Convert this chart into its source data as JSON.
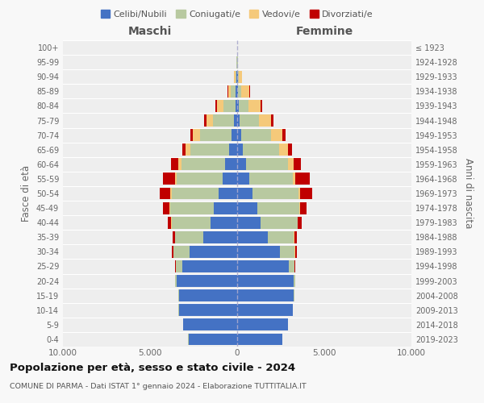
{
  "age_groups": [
    "0-4",
    "5-9",
    "10-14",
    "15-19",
    "20-24",
    "25-29",
    "30-34",
    "35-39",
    "40-44",
    "45-49",
    "50-54",
    "55-59",
    "60-64",
    "65-69",
    "70-74",
    "75-79",
    "80-84",
    "85-89",
    "90-94",
    "95-99",
    "100+"
  ],
  "birth_years": [
    "2019-2023",
    "2014-2018",
    "2009-2013",
    "2004-2008",
    "1999-2003",
    "1994-1998",
    "1989-1993",
    "1984-1988",
    "1979-1983",
    "1974-1978",
    "1969-1973",
    "1964-1968",
    "1959-1963",
    "1954-1958",
    "1949-1953",
    "1944-1948",
    "1939-1943",
    "1934-1938",
    "1929-1933",
    "1924-1928",
    "≤ 1923"
  ],
  "colors": {
    "celibi": "#4472c4",
    "coniugati": "#b8c9a0",
    "vedovi": "#f5c97a",
    "divorziati": "#c00000"
  },
  "maschi": {
    "celibi": [
      2800,
      3100,
      3350,
      3350,
      3450,
      3150,
      2750,
      1950,
      1550,
      1350,
      1050,
      850,
      680,
      480,
      330,
      180,
      110,
      70,
      40,
      20,
      8
    ],
    "coniugati": [
      5,
      5,
      10,
      20,
      100,
      350,
      900,
      1600,
      2200,
      2500,
      2700,
      2600,
      2500,
      2200,
      1800,
      1200,
      700,
      280,
      70,
      15,
      3
    ],
    "vedovi": [
      0,
      0,
      1,
      1,
      2,
      5,
      10,
      20,
      30,
      50,
      80,
      100,
      200,
      300,
      400,
      400,
      350,
      180,
      70,
      12,
      2
    ],
    "divorziati": [
      0,
      0,
      2,
      5,
      10,
      50,
      100,
      150,
      200,
      350,
      600,
      700,
      400,
      170,
      150,
      120,
      80,
      45,
      15,
      4,
      0
    ]
  },
  "femmine": {
    "celibi": [
      2600,
      2900,
      3200,
      3250,
      3250,
      2950,
      2450,
      1750,
      1350,
      1150,
      900,
      700,
      520,
      330,
      230,
      130,
      80,
      55,
      35,
      18,
      8
    ],
    "coniugati": [
      2,
      3,
      8,
      15,
      80,
      320,
      850,
      1500,
      2100,
      2400,
      2600,
      2500,
      2400,
      2100,
      1700,
      1100,
      550,
      180,
      45,
      8,
      2
    ],
    "vedovi": [
      0,
      0,
      1,
      1,
      3,
      8,
      15,
      25,
      40,
      60,
      100,
      150,
      300,
      500,
      650,
      700,
      700,
      480,
      180,
      25,
      4
    ],
    "divorziati": [
      0,
      0,
      2,
      5,
      10,
      50,
      100,
      150,
      200,
      380,
      700,
      800,
      450,
      200,
      180,
      150,
      100,
      45,
      15,
      4,
      0
    ]
  },
  "title": "Popolazione per età, sesso e stato civile - 2024",
  "subtitle": "COMUNE DI PARMA - Dati ISTAT 1° gennaio 2024 - Elaborazione TUTTITALIA.IT",
  "xlabel_left": "Maschi",
  "xlabel_right": "Femmine",
  "ylabel_left": "Fasce di età",
  "ylabel_right": "Anni di nascita",
  "xlim": 10000,
  "bg_color": "#f8f8f8",
  "plot_bg": "#eeeeee",
  "legend_labels": [
    "Celibi/Nubili",
    "Coniugati/e",
    "Vedovi/e",
    "Divorziati/e"
  ]
}
